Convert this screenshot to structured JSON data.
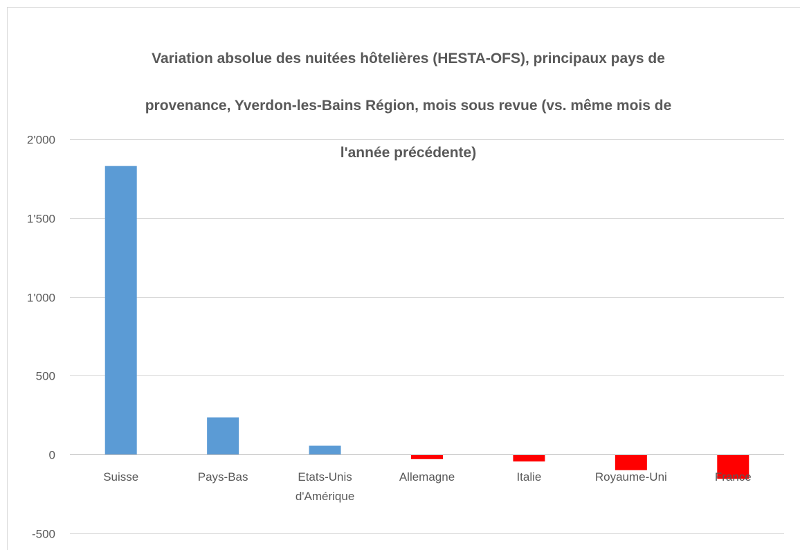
{
  "chart_data": {
    "type": "bar",
    "title": "Variation absolue des nuitées hôtelières (HESTA-OFS), principaux pays de provenance, Yverdon-les-Bains Région, mois sous revue (vs. même mois de l'année précédente)",
    "title_lines": [
      "Variation absolue des nuitées hôtelières (HESTA-OFS), principaux pays de",
      "provenance, Yverdon-les-Bains Région, mois sous revue (vs. même mois de",
      "l'année précédente)"
    ],
    "categories": [
      [
        "Suisse"
      ],
      [
        "Pays-Bas"
      ],
      [
        "Etats-Unis",
        "d'Amérique"
      ],
      [
        "Allemagne"
      ],
      [
        "Italie"
      ],
      [
        "Royaume-Uni"
      ],
      [
        "France"
      ]
    ],
    "values": [
      1830,
      235,
      55,
      -30,
      -45,
      -100,
      -155
    ],
    "ylim": [
      -500,
      2000
    ],
    "yticks": [
      {
        "value": 2000,
        "label": "2'000"
      },
      {
        "value": 1500,
        "label": "1'500"
      },
      {
        "value": 1000,
        "label": "1'000"
      },
      {
        "value": 500,
        "label": "500"
      },
      {
        "value": 0,
        "label": "0"
      },
      {
        "value": -500,
        "label": "-500"
      }
    ],
    "xlabel": "",
    "ylabel": "",
    "grid": true,
    "colors": {
      "positive": "#5b9bd5",
      "negative": "#ff0000",
      "grid": "#d9d9d9",
      "axis": "#bfbfbf",
      "text": "#595959"
    }
  }
}
